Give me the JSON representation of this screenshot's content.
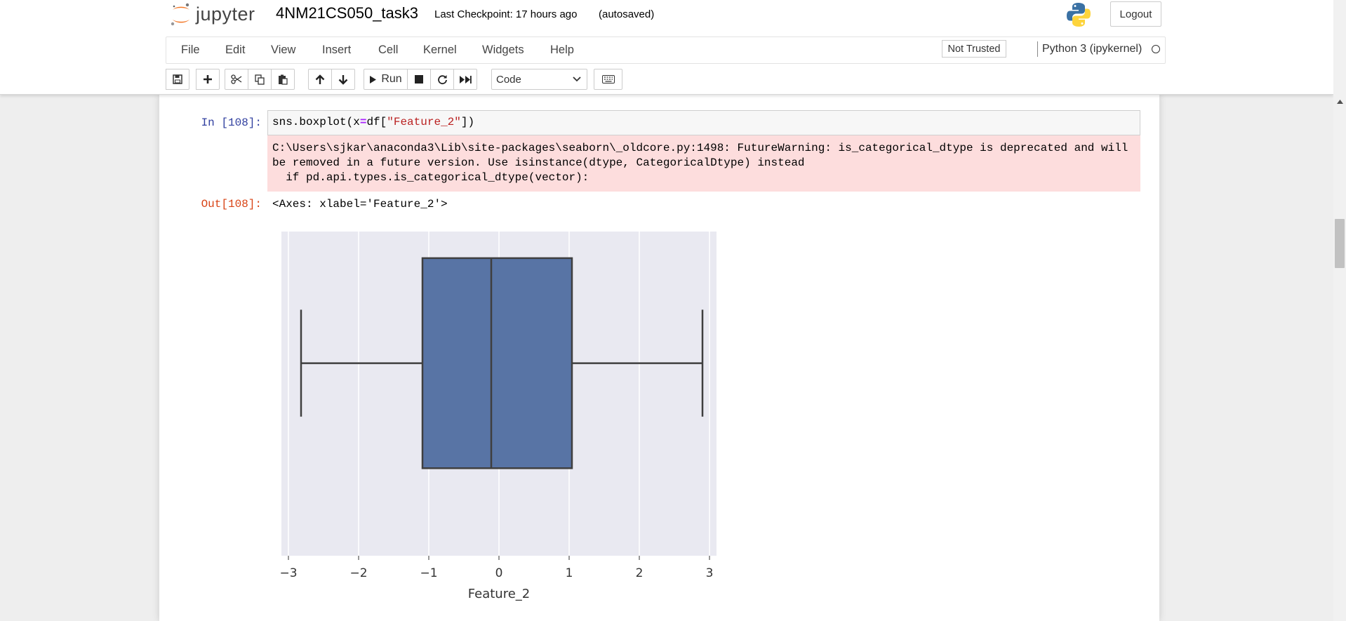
{
  "header": {
    "logo_text": "jupyter",
    "notebook_name": "4NM21CS050_task3",
    "checkpoint": "Last Checkpoint: 17 hours ago",
    "autosave": "(autosaved)",
    "logout_label": "Logout"
  },
  "menu": {
    "items": [
      "File",
      "Edit",
      "View",
      "Insert",
      "Cell",
      "Kernel",
      "Widgets",
      "Help"
    ],
    "trusted_label": "Not Trusted",
    "kernel_name": "Python 3 (ipykernel)"
  },
  "toolbar": {
    "buttons": [
      "save-icon",
      "plus-icon",
      "cut-icon",
      "copy-icon",
      "paste-icon",
      "arrow-up-icon",
      "arrow-down-icon"
    ],
    "run_label": "Run",
    "cell_type": "Code"
  },
  "cell": {
    "in_prompt": "In [108]:",
    "code": {
      "prefix": "sns.boxplot(x",
      "eq": "=",
      "mid": "df[",
      "str": "\"Feature_2\"",
      "suffix": "])"
    },
    "stderr": "C:\\Users\\sjkar\\anaconda3\\Lib\\site-packages\\seaborn\\_oldcore.py:1498: FutureWarning: is_categorical_dtype is deprecated and will\nbe removed in a future version. Use isinstance(dtype, CategoricalDtype) instead\n  if pd.api.types.is_categorical_dtype(vector):",
    "out_prompt": "Out[108]:",
    "out_text": "<Axes: xlabel='Feature_2'>"
  },
  "chart_data": {
    "type": "boxplot",
    "orientation": "horizontal",
    "xlabel": "Feature_2",
    "xlim": [
      -3.1,
      3.1
    ],
    "xticks": [
      -3,
      -2,
      -1,
      0,
      1,
      2,
      3
    ],
    "xtick_labels": [
      "−3",
      "−2",
      "−1",
      "0",
      "1",
      "2",
      "3"
    ],
    "box": {
      "whisker_low": -2.82,
      "q1": -1.09,
      "median": -0.11,
      "q3": 1.04,
      "whisker_high": 2.9
    },
    "grid": true,
    "colors": {
      "box": "#5874a5",
      "background": "#e9e9f1",
      "line": "#3f3f3f",
      "grid": "#ffffff"
    }
  }
}
